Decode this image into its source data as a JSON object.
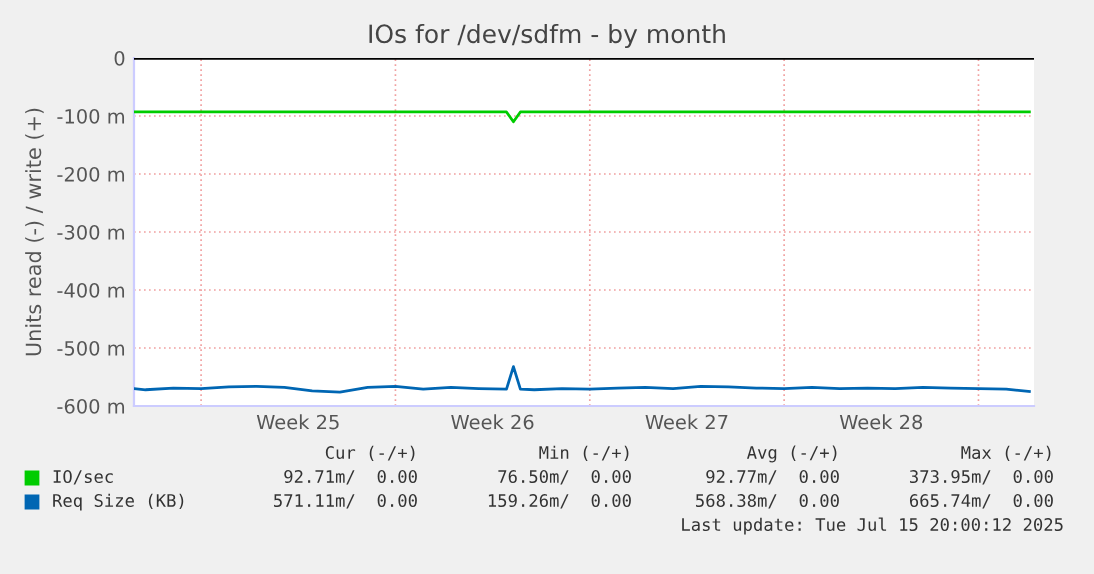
{
  "chart_data": {
    "type": "line",
    "title": "IOs for /dev/sdfm - by month",
    "ylabel": "Units read (-) / write (+)",
    "xlim": [
      "2025-06-13T14:00",
      "2025-07-16T00:00"
    ],
    "ylim": [
      -600,
      0
    ],
    "xticks": [
      {
        "value": "2025-06-16",
        "label": null
      },
      {
        "value": "2025-06-19T12:00",
        "label": "Week 25"
      },
      {
        "value": "2025-06-23",
        "label": null
      },
      {
        "value": "2025-06-26T12:00",
        "label": "Week 26"
      },
      {
        "value": "2025-06-30",
        "label": null
      },
      {
        "value": "2025-07-03T12:00",
        "label": "Week 27"
      },
      {
        "value": "2025-07-07",
        "label": null
      },
      {
        "value": "2025-07-10T12:00",
        "label": "Week 28"
      },
      {
        "value": "2025-07-14",
        "label": null
      }
    ],
    "yticks": [
      0,
      {
        "value": -100,
        "label": "-100 m"
      },
      {
        "value": -200,
        "label": "-200 m"
      },
      {
        "value": -300,
        "label": "-300 m"
      },
      {
        "value": -400,
        "label": "-400 m"
      },
      {
        "value": -500,
        "label": "-500 m"
      },
      {
        "value": -600,
        "label": "-600 m"
      }
    ],
    "grid": true,
    "legend": "bottom",
    "ref_lines": [
      {
        "axis": "y",
        "value": 0,
        "color": "#000000"
      }
    ],
    "series": [
      {
        "name": "IO/sec",
        "color": "#00cc00",
        "x": [
          "2025-06-13T14:00",
          "2025-06-27T00:00",
          "2025-06-27T06:00",
          "2025-06-27T12:00",
          "2025-07-15T20:00"
        ],
        "values": [
          -93,
          -93,
          -110,
          -93,
          -93
        ]
      },
      {
        "name": "Req Size (KB)",
        "color": "#0066b3",
        "x": [
          "2025-06-13T14:00",
          "2025-06-14",
          "2025-06-15",
          "2025-06-16",
          "2025-06-17",
          "2025-06-18",
          "2025-06-19",
          "2025-06-20",
          "2025-06-21",
          "2025-06-22",
          "2025-06-23",
          "2025-06-24",
          "2025-06-25",
          "2025-06-26",
          "2025-06-27T00:00",
          "2025-06-27T06:00",
          "2025-06-27T12:00",
          "2025-06-28",
          "2025-06-29",
          "2025-06-30",
          "2025-07-01",
          "2025-07-02",
          "2025-07-03",
          "2025-07-04",
          "2025-07-05",
          "2025-07-06",
          "2025-07-07",
          "2025-07-08",
          "2025-07-09",
          "2025-07-10",
          "2025-07-11",
          "2025-07-12",
          "2025-07-13",
          "2025-07-14",
          "2025-07-15T00:00",
          "2025-07-15T20:00"
        ],
        "values": [
          -570,
          -572,
          -569,
          -570,
          -567,
          -566,
          -568,
          -574,
          -576,
          -568,
          -566,
          -571,
          -568,
          -570,
          -571,
          -532,
          -571,
          -572,
          -570,
          -571,
          -569,
          -568,
          -570,
          -566,
          -567,
          -569,
          -570,
          -568,
          -570,
          -569,
          -570,
          -568,
          -569,
          -570,
          -571,
          -575
        ]
      }
    ],
    "annotations": [
      "Cur (-/+)",
      "Min (-/+)",
      "Avg (-/+)",
      "Max (-/+)",
      "92.71m/  0.00",
      "76.50m/  0.00",
      "92.77m/  0.00",
      "373.95m/  0.00",
      "571.11m/  0.00",
      "159.26m/  0.00",
      "568.38m/  0.00",
      "665.74m/  0.00",
      "Last update: Tue Jul 15 20:00:12 2025"
    ]
  }
}
